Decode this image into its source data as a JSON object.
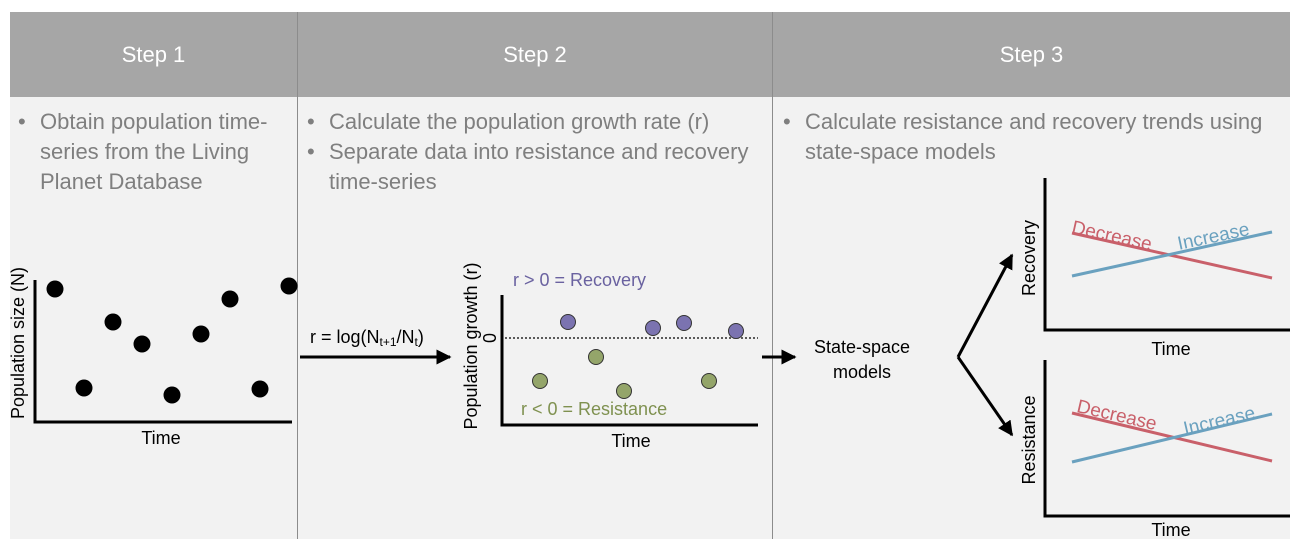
{
  "steps": [
    {
      "title": "Step 1",
      "bullets": [
        "Obtain population time-series from the Living Planet Database"
      ],
      "plot": {
        "y_label": "Population size (N)",
        "x_label": "Time"
      }
    },
    {
      "title": "Step 2",
      "bullets": [
        "Calculate the population growth rate (r)",
        "Separate data into resistance and recovery time-series"
      ],
      "formula": [
        "r = log(N",
        "t+1",
        "/N",
        "t",
        ")"
      ],
      "plot": {
        "y_label": "Population growth (r)",
        "x_label": "Time",
        "zero_label": "0",
        "recovery_label": "r > 0 = Recovery",
        "resistance_label": "r < 0 = Resistance"
      }
    },
    {
      "title": "Step 3",
      "bullets": [
        "Calculate resistance and recovery trends using state-space models"
      ],
      "model_label": [
        "State-space",
        "models"
      ],
      "plots": [
        {
          "y_label": "Recovery",
          "x_label": "Time",
          "decrease_label": "Decrease",
          "increase_label": "Increase"
        },
        {
          "y_label": "Resistance",
          "x_label": "Time",
          "decrease_label": "Decrease",
          "increase_label": "Increase"
        }
      ]
    }
  ]
}
